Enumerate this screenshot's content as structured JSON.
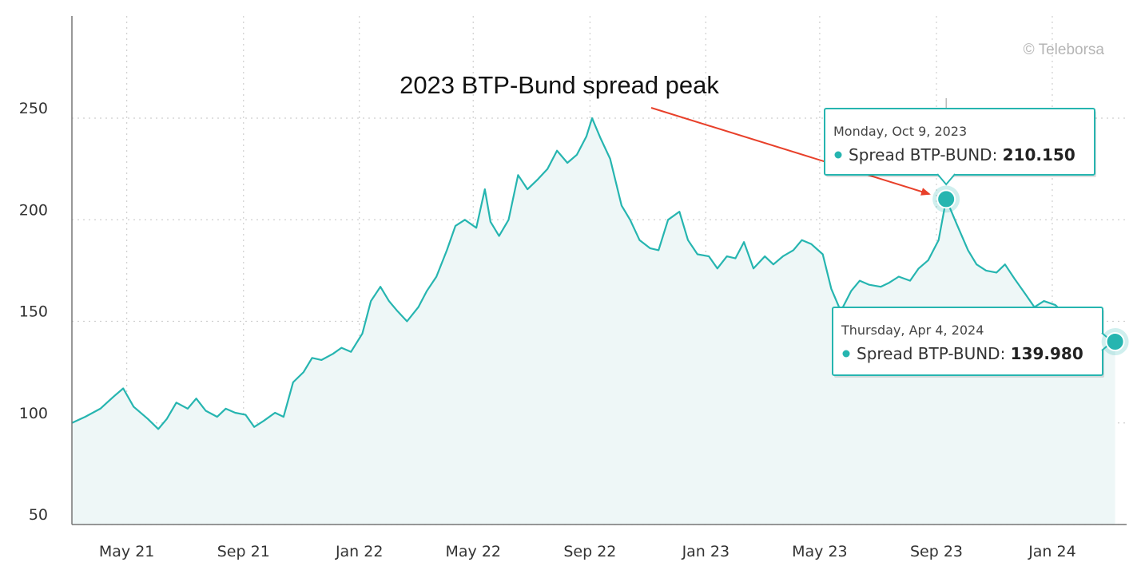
{
  "chart_data": {
    "type": "area",
    "credit": "© Teleborsa",
    "annotation": "2023 BTP-Bund spread peak",
    "y_ticks": [
      50,
      100,
      150,
      200,
      250
    ],
    "ylim": [
      50,
      250
    ],
    "x_ticks": [
      {
        "label": "May 21",
        "date": "2021-05-01"
      },
      {
        "label": "Sep 21",
        "date": "2021-09-01"
      },
      {
        "label": "Jan 22",
        "date": "2022-01-01"
      },
      {
        "label": "May 22",
        "date": "2022-05-01"
      },
      {
        "label": "Sep 22",
        "date": "2022-09-01"
      },
      {
        "label": "Jan 23",
        "date": "2023-01-01"
      },
      {
        "label": "May 23",
        "date": "2023-05-01"
      },
      {
        "label": "Sep 23",
        "date": "2023-09-01"
      },
      {
        "label": "Jan 24",
        "date": "2024-01-01"
      }
    ],
    "xlim": [
      "2021-04-01",
      "2024-04-06"
    ],
    "grid": true,
    "colors": {
      "line": "#26b5b0",
      "area": "#eef7f7",
      "arrow": "#e8402a",
      "tooltip_border": "#26b5b0"
    },
    "series": [
      {
        "name": "Spread BTP-BUND",
        "points": [
          [
            "2021-04-01",
            100
          ],
          [
            "2021-04-15",
            103
          ],
          [
            "2021-05-01",
            107
          ],
          [
            "2021-05-15",
            113
          ],
          [
            "2021-05-25",
            117
          ],
          [
            "2021-06-05",
            108
          ],
          [
            "2021-06-20",
            102
          ],
          [
            "2021-07-01",
            97
          ],
          [
            "2021-07-10",
            102
          ],
          [
            "2021-07-20",
            110
          ],
          [
            "2021-08-01",
            107
          ],
          [
            "2021-08-10",
            112
          ],
          [
            "2021-08-20",
            106
          ],
          [
            "2021-09-01",
            103
          ],
          [
            "2021-09-10",
            107
          ],
          [
            "2021-09-20",
            105
          ],
          [
            "2021-10-01",
            104
          ],
          [
            "2021-10-10",
            98
          ],
          [
            "2021-10-20",
            101
          ],
          [
            "2021-11-01",
            105
          ],
          [
            "2021-11-10",
            103
          ],
          [
            "2021-11-20",
            120
          ],
          [
            "2021-12-01",
            125
          ],
          [
            "2021-12-10",
            132
          ],
          [
            "2021-12-20",
            131
          ],
          [
            "2022-01-01",
            134
          ],
          [
            "2022-01-10",
            137
          ],
          [
            "2022-01-20",
            135
          ],
          [
            "2022-02-01",
            144
          ],
          [
            "2022-02-10",
            160
          ],
          [
            "2022-02-20",
            167
          ],
          [
            "2022-03-01",
            160
          ],
          [
            "2022-03-10",
            155
          ],
          [
            "2022-03-20",
            150
          ],
          [
            "2022-04-01",
            157
          ],
          [
            "2022-04-10",
            165
          ],
          [
            "2022-04-20",
            172
          ],
          [
            "2022-05-01",
            185
          ],
          [
            "2022-05-10",
            197
          ],
          [
            "2022-05-20",
            200
          ],
          [
            "2022-06-01",
            196
          ],
          [
            "2022-06-10",
            215
          ],
          [
            "2022-06-16",
            199
          ],
          [
            "2022-06-25",
            192
          ],
          [
            "2022-07-05",
            200
          ],
          [
            "2022-07-15",
            222
          ],
          [
            "2022-07-25",
            215
          ],
          [
            "2022-08-05",
            220
          ],
          [
            "2022-08-15",
            225
          ],
          [
            "2022-08-25",
            234
          ],
          [
            "2022-09-05",
            228
          ],
          [
            "2022-09-15",
            232
          ],
          [
            "2022-09-25",
            241
          ],
          [
            "2022-10-01",
            250
          ],
          [
            "2022-10-10",
            240
          ],
          [
            "2022-10-20",
            230
          ],
          [
            "2022-11-01",
            207
          ],
          [
            "2022-11-10",
            200
          ],
          [
            "2022-11-20",
            190
          ],
          [
            "2022-12-01",
            186
          ],
          [
            "2022-12-10",
            185
          ],
          [
            "2022-12-20",
            200
          ],
          [
            "2023-01-01",
            204
          ],
          [
            "2023-01-10",
            190
          ],
          [
            "2023-01-20",
            183
          ],
          [
            "2023-02-01",
            182
          ],
          [
            "2023-02-10",
            176
          ],
          [
            "2023-02-20",
            182
          ],
          [
            "2023-03-01",
            181
          ],
          [
            "2023-03-10",
            189
          ],
          [
            "2023-03-20",
            176
          ],
          [
            "2023-04-01",
            182
          ],
          [
            "2023-04-10",
            178
          ],
          [
            "2023-04-20",
            182
          ],
          [
            "2023-05-01",
            185
          ],
          [
            "2023-05-10",
            190
          ],
          [
            "2023-05-20",
            188
          ],
          [
            "2023-06-01",
            183
          ],
          [
            "2023-06-10",
            166
          ],
          [
            "2023-06-20",
            155
          ],
          [
            "2023-07-01",
            165
          ],
          [
            "2023-07-10",
            170
          ],
          [
            "2023-07-20",
            168
          ],
          [
            "2023-08-01",
            167
          ],
          [
            "2023-08-10",
            169
          ],
          [
            "2023-08-20",
            172
          ],
          [
            "2023-09-01",
            170
          ],
          [
            "2023-09-10",
            176
          ],
          [
            "2023-09-20",
            180
          ],
          [
            "2023-10-01",
            190
          ],
          [
            "2023-10-09",
            210.15
          ],
          [
            "2023-10-20",
            198
          ],
          [
            "2023-11-01",
            185
          ],
          [
            "2023-11-10",
            178
          ],
          [
            "2023-11-20",
            175
          ],
          [
            "2023-12-01",
            174
          ],
          [
            "2023-12-10",
            178
          ],
          [
            "2023-12-20",
            171
          ],
          [
            "2024-01-01",
            163
          ],
          [
            "2024-01-10",
            157
          ],
          [
            "2024-01-20",
            160
          ],
          [
            "2024-02-01",
            158
          ],
          [
            "2024-02-10",
            154
          ],
          [
            "2024-02-20",
            145
          ],
          [
            "2024-03-01",
            135
          ],
          [
            "2024-03-10",
            132
          ],
          [
            "2024-03-20",
            136
          ],
          [
            "2024-04-04",
            139.98
          ]
        ]
      }
    ],
    "tooltips": [
      {
        "date_label": "Monday, Oct 9, 2023",
        "date": "2023-10-09",
        "series_label": "Spread BTP-BUND:",
        "value": "210.150",
        "y": 210.15
      },
      {
        "date_label": "Thursday, Apr 4, 2024",
        "date": "2024-04-04",
        "series_label": "Spread BTP-BUND:",
        "value": "139.980",
        "y": 139.98
      }
    ]
  }
}
